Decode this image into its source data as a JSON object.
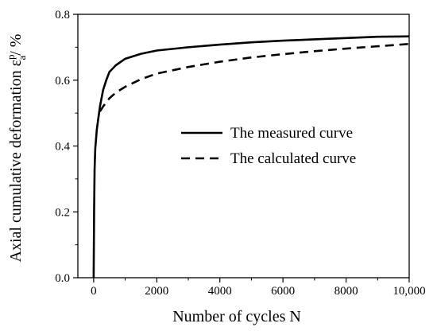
{
  "chart_data": {
    "type": "line",
    "xlabel": "Number of cycles N",
    "ylabel": {
      "prefix": "Axial cumulative deformation ε",
      "superscript": "p",
      "subscript": "a",
      "suffix": "/ %"
    },
    "xlim": [
      -500,
      10000
    ],
    "ylim": [
      0,
      0.8
    ],
    "xticks": [
      0,
      2000,
      4000,
      6000,
      8000,
      10000
    ],
    "xtick_labels": [
      "0",
      "2000",
      "4000",
      "6000",
      "8000",
      "10,000"
    ],
    "yticks": [
      0,
      0.2,
      0.4,
      0.6,
      0.8
    ],
    "ytick_labels": [
      "0.0",
      "0.2",
      "0.4",
      "0.6",
      "0.8"
    ],
    "grid": false,
    "legend_position": "center-right",
    "series": [
      {
        "name": "The measured curve",
        "style": "solid",
        "color": "#000000",
        "points": [
          [
            0,
            0.0
          ],
          [
            15,
            0.2
          ],
          [
            30,
            0.33
          ],
          [
            50,
            0.39
          ],
          [
            100,
            0.45
          ],
          [
            200,
            0.52
          ],
          [
            300,
            0.57
          ],
          [
            400,
            0.6
          ],
          [
            500,
            0.625
          ],
          [
            700,
            0.645
          ],
          [
            1000,
            0.665
          ],
          [
            1500,
            0.68
          ],
          [
            2000,
            0.69
          ],
          [
            3000,
            0.7
          ],
          [
            4000,
            0.708
          ],
          [
            5000,
            0.715
          ],
          [
            6000,
            0.72
          ],
          [
            7000,
            0.724
          ],
          [
            8000,
            0.728
          ],
          [
            9000,
            0.732
          ],
          [
            10000,
            0.733
          ]
        ]
      },
      {
        "name": "The calculated curve",
        "style": "dashed",
        "color": "#000000",
        "points": [
          [
            200,
            0.505
          ],
          [
            300,
            0.52
          ],
          [
            500,
            0.545
          ],
          [
            700,
            0.562
          ],
          [
            1000,
            0.58
          ],
          [
            1500,
            0.603
          ],
          [
            2000,
            0.62
          ],
          [
            3000,
            0.64
          ],
          [
            4000,
            0.656
          ],
          [
            5000,
            0.669
          ],
          [
            6000,
            0.679
          ],
          [
            7000,
            0.688
          ],
          [
            8000,
            0.696
          ],
          [
            9000,
            0.703
          ],
          [
            10000,
            0.71
          ]
        ]
      }
    ]
  }
}
